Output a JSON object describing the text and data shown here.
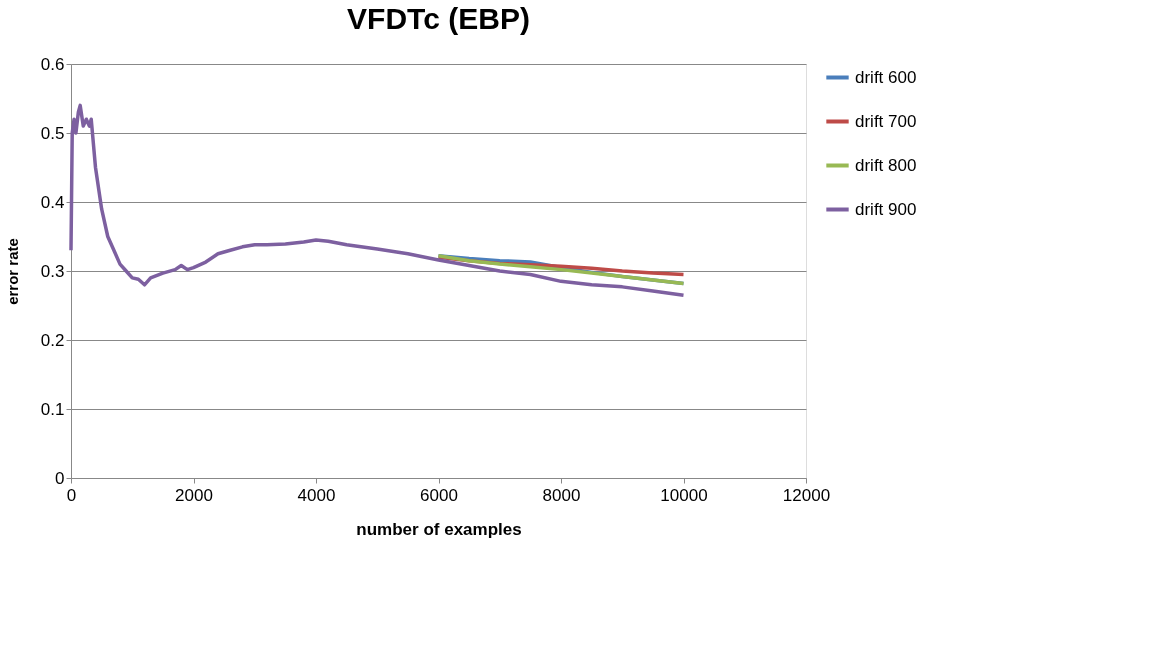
{
  "chart_data": {
    "type": "line",
    "title": "VFDTc (EBP)",
    "xlabel": "number of examples",
    "ylabel": "error rate",
    "x": [
      0,
      20,
      50,
      80,
      120,
      150,
      200,
      250,
      300,
      330,
      400,
      500,
      600,
      700,
      800,
      900,
      1000,
      1100,
      1200,
      1300,
      1500,
      1700,
      1800,
      1900,
      2000,
      2200,
      2400,
      2600,
      2800,
      3000,
      3200,
      3500,
      3800,
      4000,
      4200,
      4500,
      5000,
      5500,
      6000,
      6500,
      7000,
      7500,
      8000,
      8500,
      9000,
      9500,
      10000
    ],
    "series": [
      {
        "name": "drift 600",
        "color": "#4a7ebb",
        "values": [
          null,
          null,
          null,
          null,
          null,
          null,
          null,
          null,
          null,
          null,
          null,
          null,
          null,
          null,
          null,
          null,
          null,
          null,
          null,
          null,
          null,
          null,
          null,
          null,
          null,
          null,
          null,
          null,
          null,
          null,
          null,
          null,
          null,
          null,
          null,
          null,
          null,
          null,
          0.322,
          0.318,
          0.315,
          0.313,
          0.305,
          0.298,
          0.292,
          0.287,
          0.282
        ]
      },
      {
        "name": "drift 700",
        "color": "#be4b48",
        "values": [
          null,
          null,
          null,
          null,
          null,
          null,
          null,
          null,
          null,
          null,
          null,
          null,
          null,
          null,
          null,
          null,
          null,
          null,
          null,
          null,
          null,
          null,
          null,
          null,
          null,
          null,
          null,
          null,
          null,
          null,
          null,
          null,
          null,
          null,
          null,
          null,
          null,
          null,
          0.32,
          0.315,
          0.311,
          0.309,
          0.307,
          0.304,
          0.3,
          0.297,
          0.295
        ]
      },
      {
        "name": "drift 800",
        "color": "#98b954",
        "values": [
          null,
          null,
          null,
          null,
          null,
          null,
          null,
          null,
          null,
          null,
          null,
          null,
          null,
          null,
          null,
          null,
          null,
          null,
          null,
          null,
          null,
          null,
          null,
          null,
          null,
          null,
          null,
          null,
          null,
          null,
          null,
          null,
          null,
          null,
          null,
          null,
          null,
          null,
          0.322,
          0.315,
          0.31,
          0.306,
          0.302,
          0.297,
          0.292,
          0.287,
          0.282
        ]
      },
      {
        "name": "drift 900",
        "color": "#7d60a0",
        "values": [
          0.33,
          0.5,
          0.52,
          0.5,
          0.53,
          0.54,
          0.51,
          0.52,
          0.51,
          0.52,
          0.45,
          0.39,
          0.35,
          0.33,
          0.31,
          0.3,
          0.29,
          0.288,
          0.28,
          0.29,
          0.297,
          0.302,
          0.308,
          0.302,
          0.305,
          0.313,
          0.325,
          0.33,
          0.335,
          0.338,
          0.338,
          0.339,
          0.342,
          0.345,
          0.343,
          0.338,
          0.332,
          0.325,
          0.316,
          0.308,
          0.3,
          0.295,
          0.285,
          0.28,
          0.277,
          0.271,
          0.265
        ]
      }
    ],
    "xlim": [
      0,
      12000
    ],
    "xticks": [
      0,
      2000,
      4000,
      6000,
      8000,
      10000,
      12000
    ],
    "ylim": [
      0,
      0.6
    ],
    "yticks": [
      0,
      0.1,
      0.2,
      0.3,
      0.4,
      0.5,
      0.6
    ],
    "grid": "y",
    "legend": "right",
    "marker": "none",
    "line_style": "solid"
  }
}
